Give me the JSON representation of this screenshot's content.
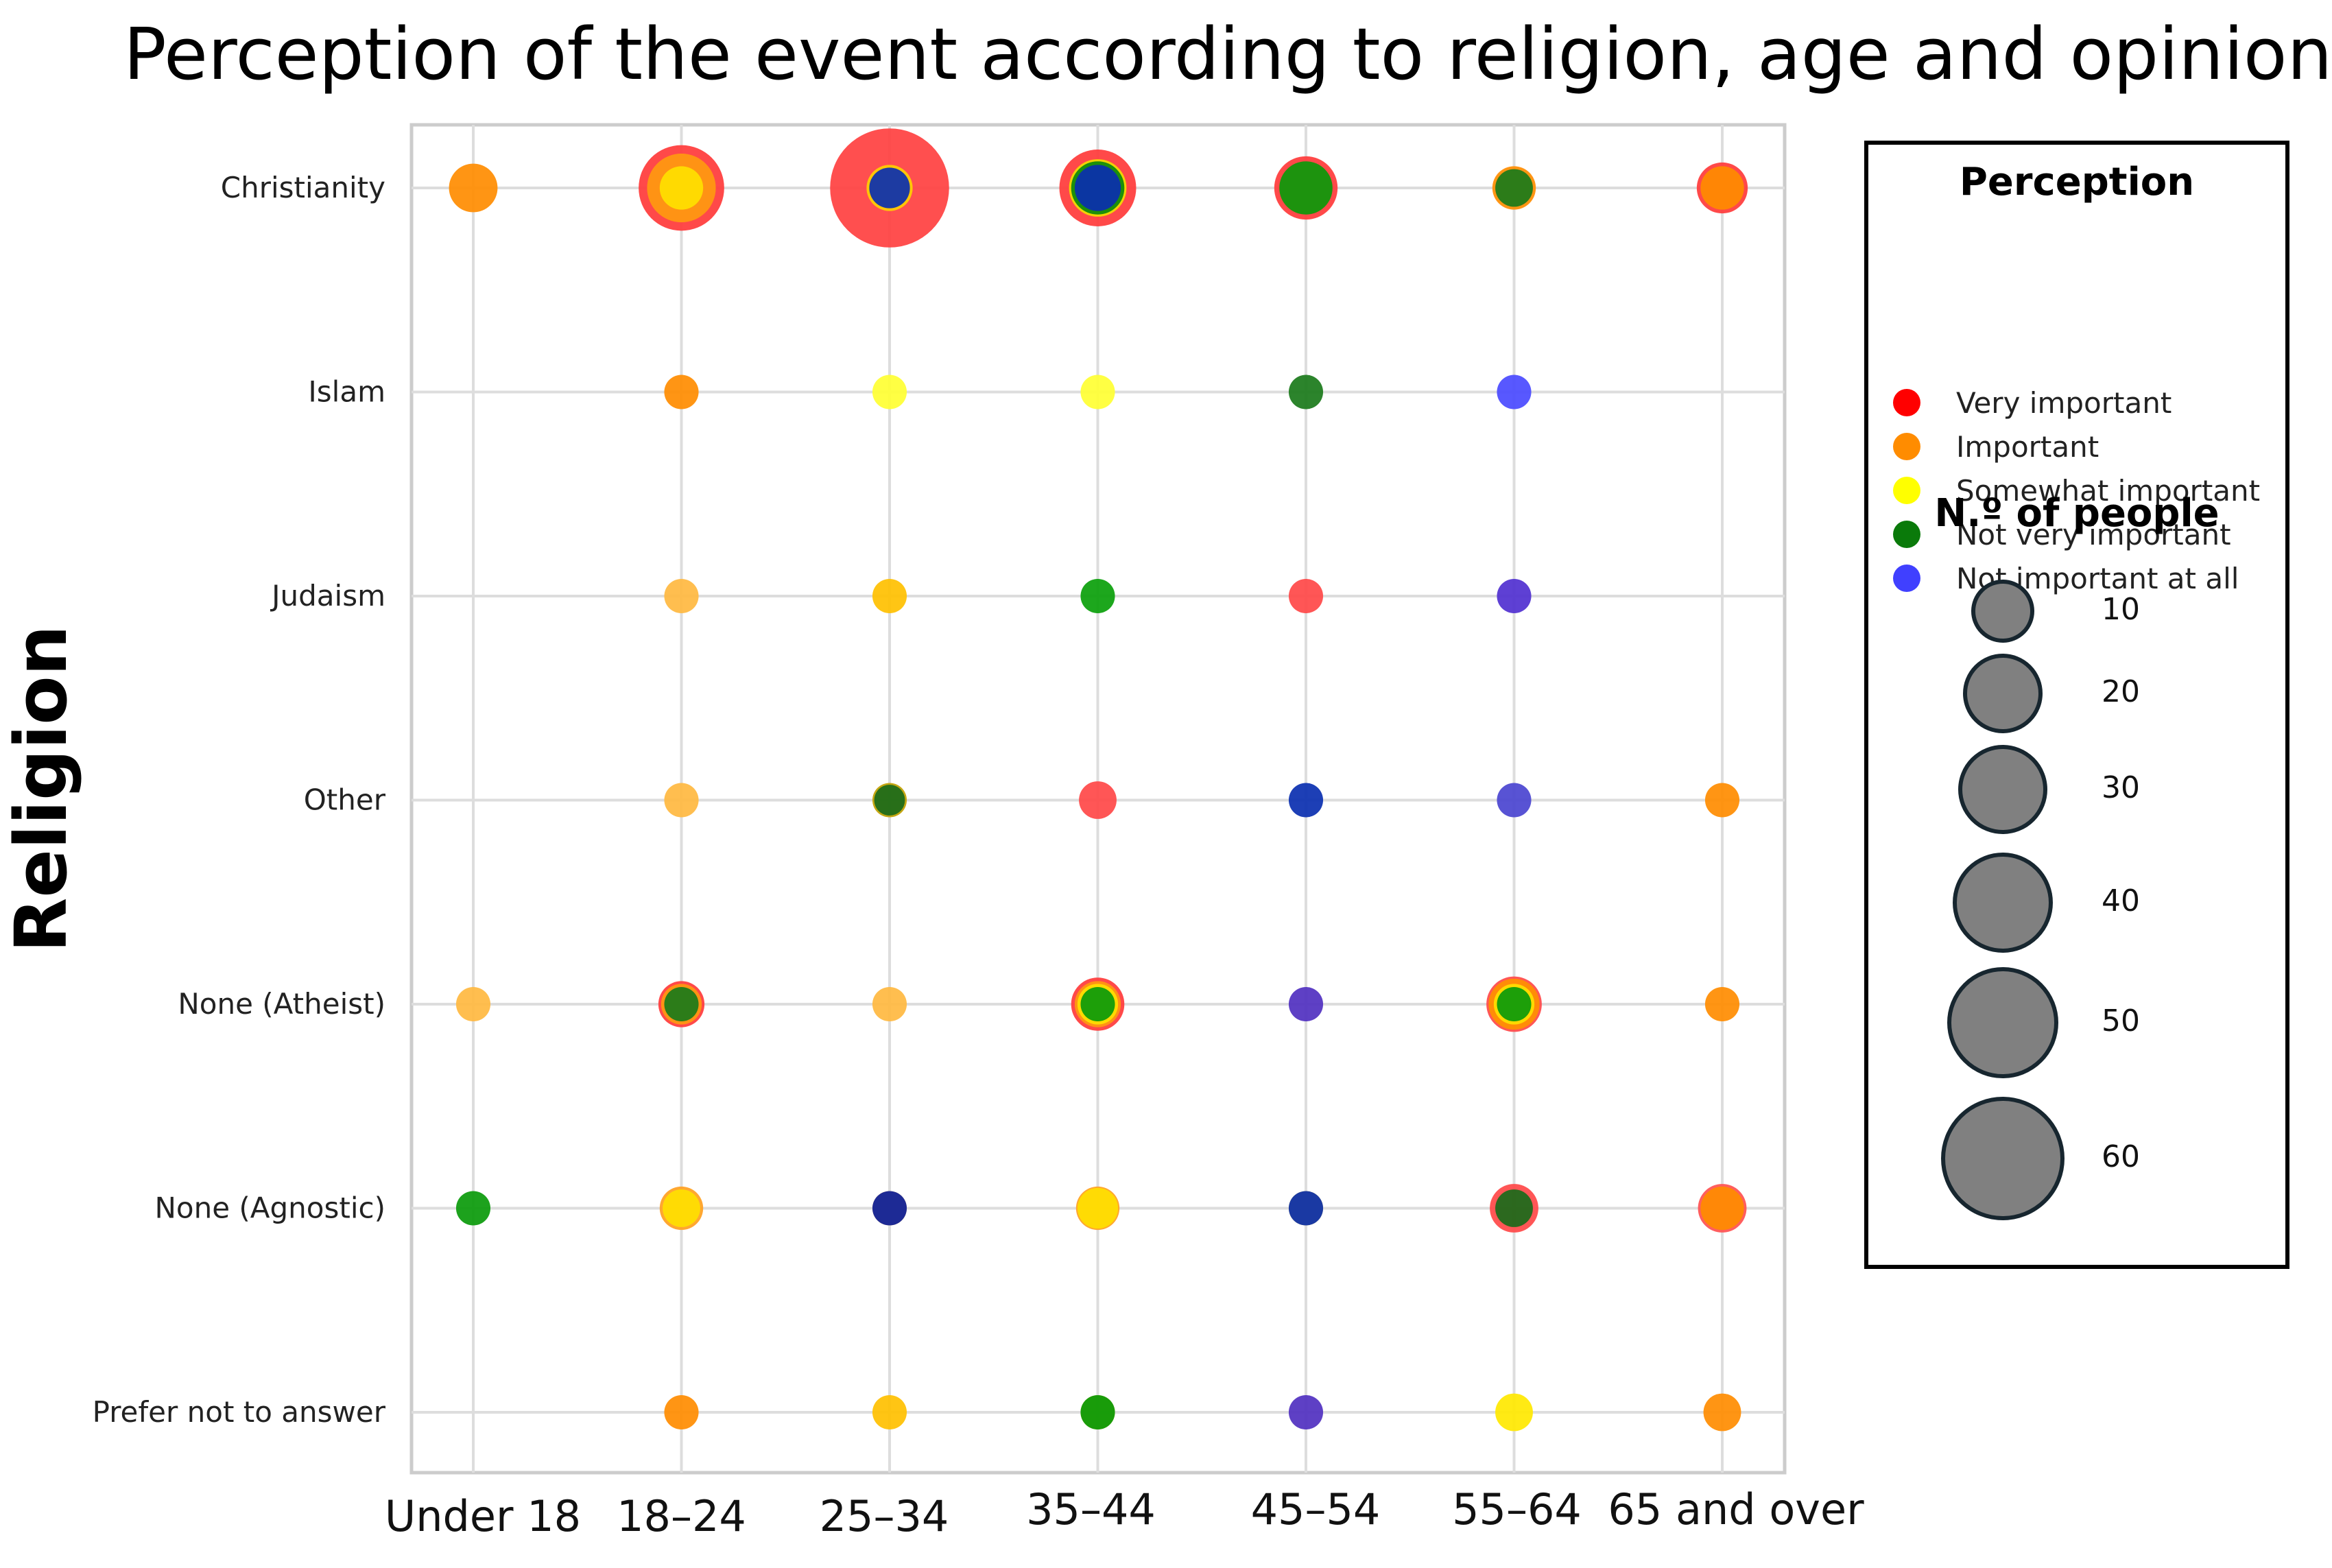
{
  "chart_data": {
    "type": "bubble",
    "title": "Perception of the event according to religion, age and opinion",
    "xlabel": "",
    "ylabel": "Religion",
    "categories_x": [
      "Under 18",
      "18–24",
      "25–34",
      "35–44",
      "45–54",
      "55–64",
      "65 and over"
    ],
    "categories_y": [
      "Christianity",
      "Islam",
      "Judaism",
      "Other",
      "None (Atheist)",
      "None (Agnostic)",
      "Prefer not to answer"
    ],
    "colors": {
      "Very important": "#ff2020",
      "Important": "#ff8c00",
      "Somewhat important": "#ffe000",
      "Not very important": "#0a8a0a",
      "Not important at all": "#2a3cff"
    },
    "series_order": [
      "Very important",
      "Important",
      "Somewhat important",
      "Not very important",
      "Not important at all"
    ],
    "size_reference": [
      10,
      20,
      30,
      40,
      50,
      60
    ],
    "points": [
      {
        "religion": "Christianity",
        "age": "Under 18",
        "layers": [
          {
            "p": "Important",
            "n": 10,
            "c": "#ff8c00"
          }
        ]
      },
      {
        "religion": "Christianity",
        "age": "18–24",
        "layers": [
          {
            "p": "Very important",
            "n": 31,
            "c": "#ff3a3a"
          },
          {
            "p": "Important",
            "n": 20,
            "c": "#ff9a10"
          },
          {
            "p": "Somewhat important",
            "n": 8,
            "c": "#ffe000"
          }
        ]
      },
      {
        "religion": "Christianity",
        "age": "25–34",
        "layers": [
          {
            "p": "Very important",
            "n": 60,
            "c": "#ff4040"
          },
          {
            "p": "Somewhat important",
            "n": 9,
            "c": "#ffd000"
          },
          {
            "p": "Not important at all",
            "n": 7,
            "c": "#0a2fb0"
          }
        ]
      },
      {
        "religion": "Christianity",
        "age": "35–44",
        "layers": [
          {
            "p": "Very important",
            "n": 25,
            "c": "#ff3a3a"
          },
          {
            "p": "Somewhat important",
            "n": 14,
            "c": "#f0e000"
          },
          {
            "p": "Not very important",
            "n": 12,
            "c": "#0a8a0a"
          },
          {
            "p": "Not important at all",
            "n": 9,
            "c": "#0a2fb0"
          }
        ]
      },
      {
        "religion": "Christianity",
        "age": "45–54",
        "layers": [
          {
            "p": "Very important",
            "n": 17,
            "c": "#ff3a3a"
          },
          {
            "p": "Not very important",
            "n": 12,
            "c": "#0a9a0a"
          }
        ]
      },
      {
        "religion": "Christianity",
        "age": "55–64",
        "layers": [
          {
            "p": "Important",
            "n": 8,
            "c": "#ff8c00"
          },
          {
            "p": "Not very important",
            "n": 6,
            "c": "#1a7a1a"
          }
        ]
      },
      {
        "religion": "Christianity",
        "age": "65 and over",
        "layers": [
          {
            "p": "Very important",
            "n": 11,
            "c": "#ff3a3a"
          },
          {
            "p": "Important",
            "n": 8,
            "c": "#ff8c00"
          }
        ]
      },
      {
        "religion": "Islam",
        "age": "18–24",
        "layers": [
          {
            "p": "Important",
            "n": 5,
            "c": "#ff8c00"
          }
        ]
      },
      {
        "religion": "Islam",
        "age": "25–34",
        "layers": [
          {
            "p": "Somewhat important",
            "n": 5,
            "c": "#ffff33"
          }
        ]
      },
      {
        "religion": "Islam",
        "age": "35–44",
        "layers": [
          {
            "p": "Somewhat important",
            "n": 5,
            "c": "#ffff33"
          }
        ]
      },
      {
        "religion": "Islam",
        "age": "45–54",
        "layers": [
          {
            "p": "Not very important",
            "n": 5,
            "c": "#1a7a1a"
          }
        ]
      },
      {
        "religion": "Islam",
        "age": "55–64",
        "layers": [
          {
            "p": "Not important at all",
            "n": 5,
            "c": "#4a4aff"
          }
        ]
      },
      {
        "religion": "Judaism",
        "age": "18–24",
        "layers": [
          {
            "p": "Important",
            "n": 5,
            "c": "#ffb840"
          }
        ]
      },
      {
        "religion": "Judaism",
        "age": "25–34",
        "layers": [
          {
            "p": "Important",
            "n": 5,
            "c": "#ffc000"
          }
        ]
      },
      {
        "religion": "Judaism",
        "age": "35–44",
        "layers": [
          {
            "p": "Not very important",
            "n": 5,
            "c": "#0aa00a"
          }
        ]
      },
      {
        "religion": "Judaism",
        "age": "45–54",
        "layers": [
          {
            "p": "Very important",
            "n": 5,
            "c": "#ff4848"
          }
        ]
      },
      {
        "religion": "Judaism",
        "age": "55–64",
        "layers": [
          {
            "p": "Not important at all",
            "n": 5,
            "c": "#5030d0"
          }
        ]
      },
      {
        "religion": "Other",
        "age": "18–24",
        "layers": [
          {
            "p": "Important",
            "n": 5,
            "c": "#ffb840"
          }
        ]
      },
      {
        "religion": "Other",
        "age": "25–34",
        "layers": [
          {
            "p": "Somewhat important",
            "n": 5,
            "c": "#c0a000"
          },
          {
            "p": "Not very important",
            "n": 4,
            "c": "#1a6a1a"
          }
        ]
      },
      {
        "religion": "Other",
        "age": "35–44",
        "layers": [
          {
            "p": "Very important",
            "n": 6,
            "c": "#ff4848"
          }
        ]
      },
      {
        "religion": "Other",
        "age": "45–54",
        "layers": [
          {
            "p": "Not important at all",
            "n": 5,
            "c": "#0a2fb0"
          }
        ]
      },
      {
        "religion": "Other",
        "age": "55–64",
        "layers": [
          {
            "p": "Not important at all",
            "n": 5,
            "c": "#4a44d0"
          }
        ]
      },
      {
        "religion": "Other",
        "age": "65 and over",
        "layers": [
          {
            "p": "Important",
            "n": 5,
            "c": "#ff8c00"
          }
        ]
      },
      {
        "religion": "None (Atheist)",
        "age": "Under 18",
        "layers": [
          {
            "p": "Important",
            "n": 5,
            "c": "#ffb840"
          }
        ]
      },
      {
        "religion": "None (Atheist)",
        "age": "18–24",
        "layers": [
          {
            "p": "Very important",
            "n": 9,
            "c": "#ff3a3a"
          },
          {
            "p": "Important",
            "n": 7,
            "c": "#ff9a10"
          },
          {
            "p": "Not very important",
            "n": 5,
            "c": "#1a7a1a"
          }
        ]
      },
      {
        "religion": "None (Atheist)",
        "age": "25–34",
        "layers": [
          {
            "p": "Important",
            "n": 5,
            "c": "#ffb840"
          }
        ]
      },
      {
        "religion": "None (Atheist)",
        "age": "35–44",
        "layers": [
          {
            "p": "Very important",
            "n": 12,
            "c": "#ff3a3a"
          },
          {
            "p": "Important",
            "n": 9,
            "c": "#ff9a10"
          },
          {
            "p": "Somewhat important",
            "n": 7,
            "c": "#ffe000"
          },
          {
            "p": "Not very important",
            "n": 5,
            "c": "#0a9a0a"
          }
        ]
      },
      {
        "religion": "None (Atheist)",
        "age": "45–54",
        "layers": [
          {
            "p": "Not important at all",
            "n": 5,
            "c": "#5030c0"
          }
        ]
      },
      {
        "religion": "None (Atheist)",
        "age": "55–64",
        "layers": [
          {
            "p": "Very important",
            "n": 13,
            "c": "#ff4848"
          },
          {
            "p": "Important",
            "n": 11,
            "c": "#ff9000"
          },
          {
            "p": "Somewhat important",
            "n": 7,
            "c": "#ffe000"
          },
          {
            "p": "Not very important",
            "n": 5,
            "c": "#0a9a0a"
          }
        ]
      },
      {
        "religion": "None (Atheist)",
        "age": "65 and over",
        "layers": [
          {
            "p": "Important",
            "n": 5,
            "c": "#ff8c00"
          }
        ]
      },
      {
        "religion": "None (Agnostic)",
        "age": "Under 18",
        "layers": [
          {
            "p": "Not very important",
            "n": 5,
            "c": "#0a9a0a"
          }
        ]
      },
      {
        "religion": "None (Agnostic)",
        "age": "18–24",
        "layers": [
          {
            "p": "Important",
            "n": 8,
            "c": "#ffa020"
          },
          {
            "p": "Somewhat important",
            "n": 6,
            "c": "#ffe000"
          }
        ]
      },
      {
        "religion": "None (Agnostic)",
        "age": "25–34",
        "layers": [
          {
            "p": "Important",
            "n": 5,
            "c": "#ff9a10"
          },
          {
            "p": "Not important at all",
            "n": 5,
            "c": "#0a1fa0"
          }
        ]
      },
      {
        "religion": "None (Agnostic)",
        "age": "35–44",
        "layers": [
          {
            "p": "Important",
            "n": 8,
            "c": "#ffa020"
          },
          {
            "p": "Somewhat important",
            "n": 7,
            "c": "#ffe000"
          }
        ]
      },
      {
        "religion": "None (Agnostic)",
        "age": "45–54",
        "layers": [
          {
            "p": "Somewhat important",
            "n": 5,
            "c": "#d0b000"
          },
          {
            "p": "Not important at all",
            "n": 5,
            "c": "#0a2fb0"
          }
        ]
      },
      {
        "religion": "None (Agnostic)",
        "age": "55–64",
        "layers": [
          {
            "p": "Very important",
            "n": 10,
            "c": "#ff4848"
          },
          {
            "p": "Not very important",
            "n": 6,
            "c": "#1a6a1a"
          }
        ]
      },
      {
        "religion": "None (Agnostic)",
        "age": "65 and over",
        "layers": [
          {
            "p": "Very important",
            "n": 10,
            "c": "#ff5050"
          },
          {
            "p": "Important",
            "n": 8,
            "c": "#ff8c00"
          }
        ]
      },
      {
        "religion": "Prefer not to answer",
        "age": "18–24",
        "layers": [
          {
            "p": "Important",
            "n": 5,
            "c": "#ff8c00"
          }
        ]
      },
      {
        "religion": "Prefer not to answer",
        "age": "25–34",
        "layers": [
          {
            "p": "Important",
            "n": 5,
            "c": "#ffc000"
          }
        ]
      },
      {
        "religion": "Prefer not to answer",
        "age": "35–44",
        "layers": [
          {
            "p": "Somewhat important",
            "n": 5,
            "c": "#c0b000"
          },
          {
            "p": "Not very important",
            "n": 5,
            "c": "#0a9a0a"
          }
        ]
      },
      {
        "religion": "Prefer not to answer",
        "age": "45–54",
        "layers": [
          {
            "p": "Not important at all",
            "n": 5,
            "c": "#5030c0"
          }
        ]
      },
      {
        "religion": "Prefer not to answer",
        "age": "55–64",
        "layers": [
          {
            "p": "Somewhat important",
            "n": 6,
            "c": "#ffe800"
          }
        ]
      },
      {
        "religion": "Prefer not to answer",
        "age": "65 and over",
        "layers": [
          {
            "p": "Important",
            "n": 6,
            "c": "#ff8c00"
          }
        ]
      }
    ]
  },
  "legend": {
    "perception_title": "Perception",
    "items": [
      {
        "label": "Very important",
        "color": "#ff0000"
      },
      {
        "label": "Important",
        "color": "#ff8c00"
      },
      {
        "label": "Somewhat important",
        "color": "#ffff00"
      },
      {
        "label": "Not very important",
        "color": "#0a7a0a"
      },
      {
        "label": "Not important at all",
        "color": "#4040ff"
      }
    ],
    "size_title": "N.º of people",
    "sizes": [
      "10",
      "20",
      "30",
      "40",
      "50",
      "60"
    ]
  }
}
